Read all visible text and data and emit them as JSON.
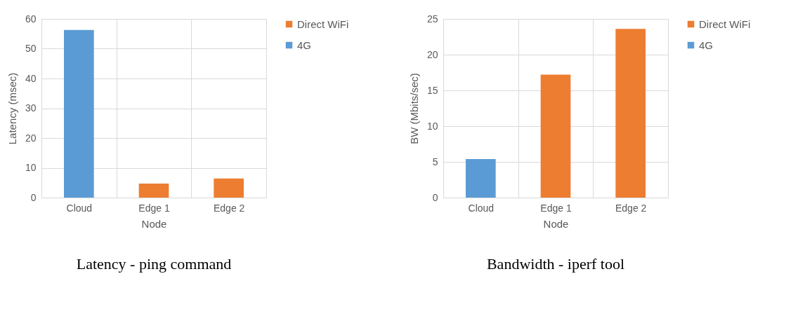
{
  "chart_data": [
    {
      "type": "bar",
      "title": "Latency - ping command",
      "xlabel": "Node",
      "ylabel": "Latency (msec)",
      "categories": [
        "Cloud",
        "Edge 1",
        "Edge 2"
      ],
      "series": [
        {
          "name": "Direct WiFi",
          "color": "#ed7d31",
          "values": [
            null,
            4.7,
            6.4
          ]
        },
        {
          "name": "4G",
          "color": "#5b9bd5",
          "values": [
            56.3,
            null,
            null
          ]
        }
      ],
      "ylim": [
        0,
        60
      ],
      "yticks": [
        0,
        10,
        20,
        30,
        40,
        50,
        60
      ],
      "grid": true,
      "legend": "right"
    },
    {
      "type": "bar",
      "title": "Bandwidth - iperf tool",
      "xlabel": "Node",
      "ylabel": "BW (Mbits/sec)",
      "categories": [
        "Cloud",
        "Edge 1",
        "Edge 2"
      ],
      "series": [
        {
          "name": "Direct WiFi",
          "color": "#ed7d31",
          "values": [
            null,
            17.2,
            23.6
          ]
        },
        {
          "name": "4G",
          "color": "#5b9bd5",
          "values": [
            5.4,
            null,
            null
          ]
        }
      ],
      "ylim": [
        0,
        25
      ],
      "yticks": [
        0,
        5,
        10,
        15,
        20,
        25
      ],
      "grid": true,
      "legend": "right"
    }
  ]
}
